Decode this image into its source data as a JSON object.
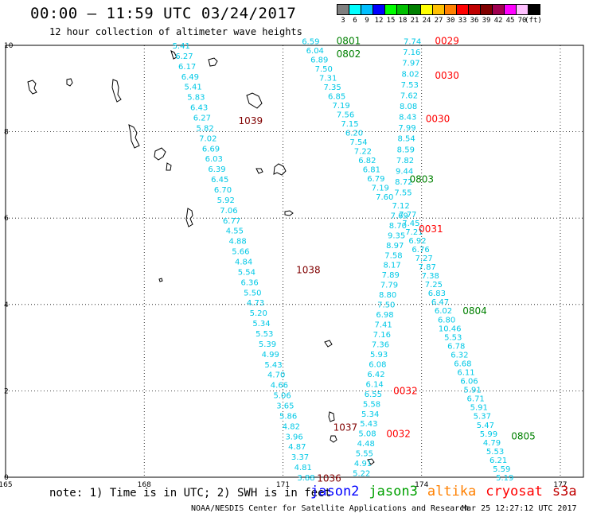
{
  "header": {
    "title": "00:00 — 11:59 UTC 03/24/2017",
    "subtitle": "12 hour collection of altimeter wave heights"
  },
  "colorbar": {
    "units": "(ft)",
    "entries": [
      {
        "label": "3",
        "color": "#808080"
      },
      {
        "label": "6",
        "color": "#00ffff"
      },
      {
        "label": "9",
        "color": "#00bfff"
      },
      {
        "label": "12",
        "color": "#0000ff"
      },
      {
        "label": "15",
        "color": "#00ff00"
      },
      {
        "label": "18",
        "color": "#00c000"
      },
      {
        "label": "21",
        "color": "#008000"
      },
      {
        "label": "24",
        "color": "#ffff00"
      },
      {
        "label": "27",
        "color": "#ffc000"
      },
      {
        "label": "30",
        "color": "#ff8000"
      },
      {
        "label": "33",
        "color": "#ff0000"
      },
      {
        "label": "36",
        "color": "#c00000"
      },
      {
        "label": "39",
        "color": "#800000"
      },
      {
        "label": "42",
        "color": "#a00050"
      },
      {
        "label": "45",
        "color": "#ff00ff"
      },
      {
        "label": "70",
        "color": "#ffc0ff"
      },
      {
        "label": "",
        "color": "#000000"
      }
    ]
  },
  "chart_data": {
    "type": "scatter",
    "xlim": [
      165,
      177.5
    ],
    "ylim": [
      0,
      10
    ],
    "x_ticks": [
      "165",
      "168",
      "171",
      "174",
      "177"
    ],
    "y_ticks": [
      "0",
      "2",
      "4",
      "6",
      "8",
      "10"
    ],
    "grid": true,
    "tracks": [
      {
        "color": "#00c8e6",
        "from": [
          168.8,
          10.0
        ],
        "to": [
          171.5,
          0.0
        ],
        "values": [
          "5.41",
          "6.27",
          "6.17",
          "6.49",
          "5.41",
          "5.83",
          "6.43",
          "6.27",
          "5.82",
          "7.02",
          "6.69",
          "6.03",
          "6.39",
          "6.45",
          "6.70",
          "5.92",
          "7.06",
          "6.77",
          "4.55",
          "4.88",
          "5.66",
          "4.84",
          "5.54",
          "6.36",
          "5.50",
          "4.73",
          "5.20",
          "5.34",
          "5.53",
          "5.39",
          "4.99",
          "5.43",
          "4.70",
          "4.66",
          "5.06",
          "3.65",
          "5.86",
          "4.82",
          "3.96",
          "4.87",
          "3.37",
          "4.81",
          "3.88"
        ]
      },
      {
        "color": "#00c8e6",
        "from": [
          171.6,
          10.1
        ],
        "to": [
          173.2,
          6.5
        ],
        "values": [
          "6.59",
          "6.04",
          "6.89",
          "7.50",
          "7.31",
          "7.35",
          "6.85",
          "7.19",
          "7.56",
          "7.15",
          "6.20",
          "7.54",
          "7.22",
          "6.82",
          "6.81",
          "6.79",
          "7.19",
          "7.60"
        ]
      },
      {
        "color": "#00c8e6",
        "from": [
          173.55,
          6.3
        ],
        "to": [
          172.7,
          0.1
        ],
        "values": [
          "7.12",
          "7.69",
          "8.70",
          "9.35",
          "8.97",
          "7.58",
          "8.17",
          "7.89",
          "7.79",
          "8.80",
          "7.50",
          "6.98",
          "7.41",
          "7.16",
          "7.36",
          "5.93",
          "6.08",
          "6.42",
          "6.14",
          "6.55",
          "5.58",
          "5.34",
          "5.43",
          "5.08",
          "4.48",
          "5.55",
          "4.91",
          "5.22"
        ]
      },
      {
        "color": "#00c8e6",
        "from": [
          173.8,
          10.1
        ],
        "to": [
          173.6,
          6.6
        ],
        "values": [
          "7.74",
          "7.16",
          "7.97",
          "8.02",
          "7.53",
          "7.62",
          "8.08",
          "8.43",
          "7.99",
          "8.54",
          "8.59",
          "7.82",
          "9.44",
          "8.72",
          "7.55"
        ]
      },
      {
        "color": "#00c8e6",
        "from": [
          173.7,
          6.1
        ],
        "to": [
          175.8,
          0.0
        ],
        "values": [
          "7.77",
          "7.45",
          "7.21",
          "6.92",
          "6.76",
          "7.27",
          "7.87",
          "7.38",
          "7.25",
          "6.83",
          "6.47",
          "6.02",
          "6.80",
          "10.46",
          "5.53",
          "6.78",
          "6.32",
          "6.68",
          "6.11",
          "6.06",
          "5.91",
          "6.71",
          "5.91",
          "5.37",
          "5.47",
          "5.99",
          "4.79",
          "5.53",
          "6.21",
          "5.59",
          "5.19"
        ]
      }
    ],
    "time_labels": [
      {
        "text": "0801",
        "x": 172.42,
        "y": 10.1,
        "color": "#008000"
      },
      {
        "text": "0802",
        "x": 172.42,
        "y": 9.8,
        "color": "#008000"
      },
      {
        "text": "0029",
        "x": 174.55,
        "y": 10.1,
        "color": "#ff0000"
      },
      {
        "text": "0030",
        "x": 174.55,
        "y": 9.3,
        "color": "#ff0000"
      },
      {
        "text": "0030",
        "x": 174.35,
        "y": 8.3,
        "color": "#ff0000"
      },
      {
        "text": "1039",
        "x": 170.3,
        "y": 8.25,
        "color": "#800000"
      },
      {
        "text": "0803",
        "x": 174.0,
        "y": 6.9,
        "color": "#008000"
      },
      {
        "text": "0031",
        "x": 174.2,
        "y": 5.75,
        "color": "#ff0000"
      },
      {
        "text": "1038",
        "x": 171.55,
        "y": 4.8,
        "color": "#800000"
      },
      {
        "text": "0804",
        "x": 175.15,
        "y": 3.85,
        "color": "#008000"
      },
      {
        "text": "0032",
        "x": 173.65,
        "y": 2.0,
        "color": "#ff0000"
      },
      {
        "text": "1037",
        "x": 172.35,
        "y": 1.15,
        "color": "#800000"
      },
      {
        "text": "0032",
        "x": 173.5,
        "y": 1.0,
        "color": "#ff0000"
      },
      {
        "text": "0805",
        "x": 176.2,
        "y": 0.95,
        "color": "#008000"
      },
      {
        "text": "1036",
        "x": 172.0,
        "y": -0.03,
        "color": "#800000"
      }
    ]
  },
  "footer": {
    "note": "note: 1) Time is in UTC; 2) SWH is in feet",
    "legend": [
      {
        "label": "jason2",
        "color": "#0000ff"
      },
      {
        "label": "jason3",
        "color": "#00a000"
      },
      {
        "label": "altika",
        "color": "#ff8000"
      },
      {
        "label": "cryosat",
        "color": "#ff0000"
      },
      {
        "label": "s3a",
        "color": "#c00000"
      }
    ],
    "credit": "NOAA/NESDIS Center for Satellite Applications and Research",
    "timestamp": "Mar 25 12:27:12 UTC 2017"
  }
}
